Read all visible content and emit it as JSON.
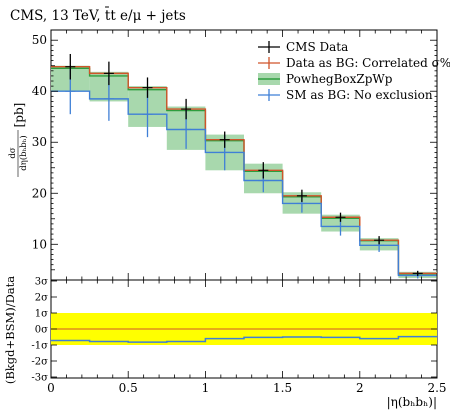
{
  "header": {
    "title": "CMS, 13 TeV, t̄t e/μ + jets"
  },
  "axes": {
    "ylabel": "[pb]",
    "ylabel_frac_num": "dσ",
    "ylabel_frac_den": "dη(bₕbₕ)",
    "xlabel": "|η(bₕbₕ)|",
    "ratio_ylabel": "(Bkgd+BSM)/Data",
    "x_ticks": [
      "0",
      "0.5",
      "1",
      "1.5",
      "2",
      "2.5"
    ],
    "y_ticks": [
      "10",
      "20",
      "30",
      "40",
      "50"
    ],
    "ratio_ticks": [
      "3σ",
      "2σ",
      "1σ",
      "0σ",
      "-1σ",
      "-2σ",
      "-3σ"
    ]
  },
  "colors": {
    "data": "#000000",
    "correlated": "#d0542a",
    "powheg": "#2e9d3e",
    "powheg_band": "#a8d8ad",
    "sm": "#3f7fd6",
    "ratio_band": "#ffff00"
  },
  "chart_data": {
    "type": "line",
    "title": "CMS, 13 TeV, t̄t e/μ + jets",
    "xlabel": "|η(bₕbₕ)|",
    "ylabel": "dσ/dη(bₕbₕ) [pb]",
    "xlim": [
      0,
      2.5
    ],
    "ylim": [
      3,
      52
    ],
    "ratio_ylim": [
      -3,
      3
    ],
    "bin_edges": [
      0,
      0.25,
      0.5,
      0.75,
      1.0,
      1.25,
      1.5,
      1.75,
      2.0,
      2.25,
      2.5
    ],
    "legend_position": "top-right",
    "series": [
      {
        "name": "CMS Data",
        "key": "data",
        "style": "errorbar",
        "values": [
          44.8,
          43.5,
          40.7,
          36.5,
          30.5,
          24.5,
          19.5,
          15.3,
          10.8,
          4.3
        ],
        "errors": [
          2.5,
          2.3,
          2.0,
          2.0,
          1.6,
          1.6,
          1.2,
          0.9,
          0.8,
          0.5
        ]
      },
      {
        "name": "Data as BG: Correlated σ%",
        "key": "correlated",
        "style": "step",
        "values": [
          44.8,
          43.5,
          40.7,
          36.5,
          30.5,
          24.5,
          19.5,
          15.3,
          10.8,
          4.3
        ]
      },
      {
        "name": "PowhegBoxZpWp",
        "key": "powheg",
        "style": "band",
        "values": [
          44.5,
          43.0,
          40.3,
          36.2,
          30.3,
          24.3,
          19.3,
          15.1,
          10.7,
          4.2
        ],
        "band_low": [
          40.0,
          38.0,
          33.0,
          28.5,
          24.5,
          20.0,
          16.0,
          12.5,
          8.8,
          3.4
        ],
        "band_high": [
          45.0,
          43.8,
          41.0,
          37.0,
          31.5,
          25.8,
          20.2,
          15.8,
          11.2,
          4.6
        ]
      },
      {
        "name": "SM as BG: No exclusion",
        "key": "sm",
        "style": "errorbar",
        "values": [
          40.0,
          38.5,
          35.5,
          32.5,
          28.0,
          22.5,
          18.0,
          13.5,
          9.8,
          3.9
        ],
        "errors": [
          4.5,
          4.3,
          4.5,
          3.8,
          3.5,
          2.3,
          1.8,
          1.8,
          1.3,
          0.6
        ]
      }
    ],
    "ratio": {
      "band": [
        -1,
        1
      ],
      "sm": [
        -0.72,
        -0.78,
        -0.82,
        -0.78,
        -0.6,
        -0.52,
        -0.5,
        -0.52,
        -0.6,
        -0.48
      ]
    }
  }
}
